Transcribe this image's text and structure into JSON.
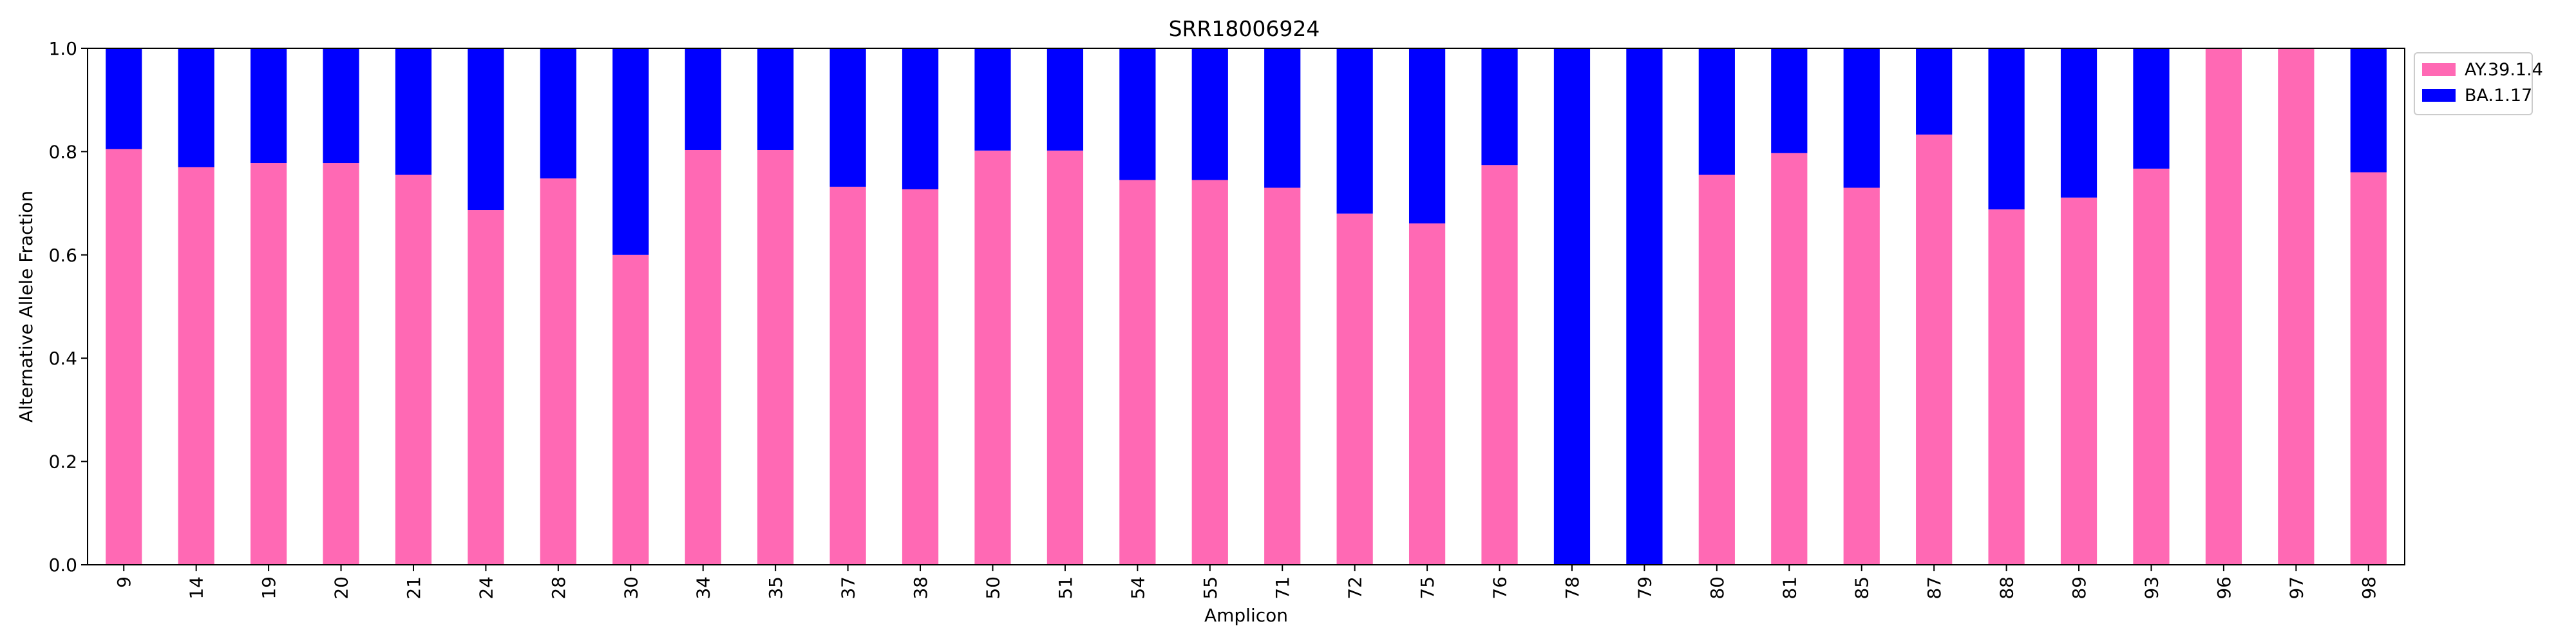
{
  "chart_data": {
    "type": "bar",
    "stacked": true,
    "title": "SRR18006924",
    "xlabel": "Amplicon",
    "ylabel": "Alternative Allele Fraction",
    "ylim": [
      0,
      1
    ],
    "yticks": [
      "0.0",
      "0.2",
      "0.4",
      "0.6",
      "0.8",
      "1.0"
    ],
    "categories": [
      "9",
      "14",
      "19",
      "20",
      "21",
      "24",
      "28",
      "30",
      "34",
      "35",
      "37",
      "38",
      "50",
      "51",
      "54",
      "55",
      "71",
      "72",
      "75",
      "76",
      "78",
      "79",
      "80",
      "81",
      "85",
      "87",
      "88",
      "89",
      "93",
      "96",
      "97",
      "98"
    ],
    "series": [
      {
        "name": "AY.39.1.4",
        "color": "#ff69b4",
        "values": [
          0.805,
          0.77,
          0.778,
          0.778,
          0.755,
          0.687,
          0.748,
          0.6,
          0.803,
          0.803,
          0.732,
          0.727,
          0.802,
          0.802,
          0.745,
          0.745,
          0.73,
          0.68,
          0.661,
          0.774,
          0,
          0,
          0.755,
          0.797,
          0.73,
          0.833,
          0.688,
          0.711,
          0.767,
          1.0,
          1.0,
          0.76
        ]
      },
      {
        "name": "BA.1.17",
        "color": "#0000ff",
        "values": [
          0.195,
          0.23,
          0.222,
          0.222,
          0.245,
          0.313,
          0.252,
          0.4,
          0.197,
          0.197,
          0.268,
          0.273,
          0.198,
          0.198,
          0.255,
          0.255,
          0.27,
          0.32,
          0.339,
          0.226,
          1.0,
          1.0,
          0.245,
          0.203,
          0.27,
          0.167,
          0.312,
          0.289,
          0.233,
          0,
          0,
          0.24
        ]
      }
    ],
    "legend": "outside-top-right"
  }
}
